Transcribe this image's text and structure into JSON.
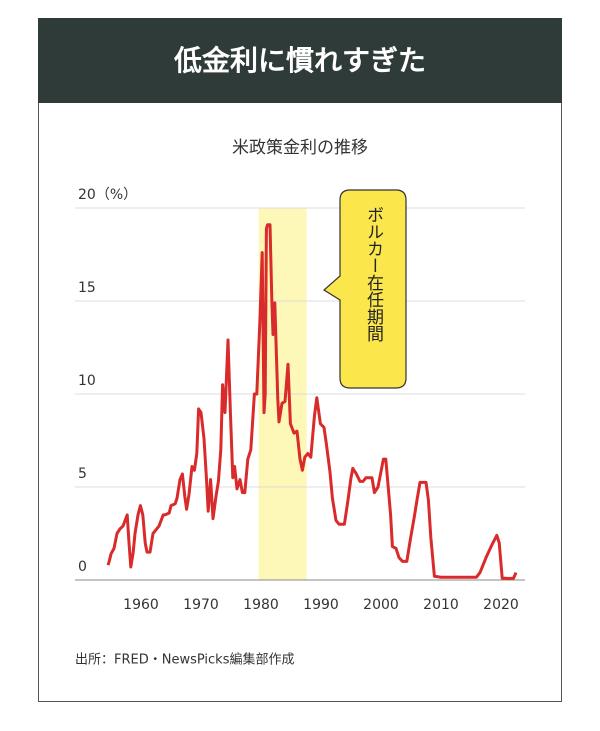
{
  "header": {
    "title": "低金利に慣れすぎた"
  },
  "chart_data": {
    "type": "line",
    "title": "米政策金利の推移",
    "source": "出所：FRED・NewsPicks編集部作成",
    "x": [
      1954.5,
      1954.7,
      1955,
      1955.5,
      1956,
      1956.5,
      1957,
      1957.7,
      1958,
      1958.3,
      1958.7,
      1959,
      1959.5,
      1959.9,
      1960.3,
      1960.7,
      1961,
      1961.5,
      1962,
      1962.5,
      1963,
      1963.7,
      1964,
      1964.7,
      1965,
      1965.7,
      1966,
      1966.5,
      1966.9,
      1967.3,
      1967.6,
      1968,
      1968.5,
      1968.9,
      1969.3,
      1969.6,
      1970,
      1970.5,
      1970.9,
      1971.2,
      1971.6,
      1972,
      1972.5,
      1972.9,
      1973.3,
      1973.6,
      1974,
      1974.5,
      1974.9,
      1975.3,
      1975.6,
      1976,
      1976.5,
      1976.9,
      1977.3,
      1977.8,
      1978.3,
      1978.9,
      1979.3,
      1979.8,
      1980.2,
      1980.5,
      1980.7,
      1980.9,
      1981.1,
      1981.5,
      1981.8,
      1982,
      1982.3,
      1982.8,
      1983,
      1983.5,
      1984,
      1984.5,
      1984.9,
      1985.5,
      1986,
      1986.5,
      1986.9,
      1987.3,
      1987.8,
      1988.3,
      1988.9,
      1989.3,
      1989.9,
      1990.5,
      1990.9,
      1991.5,
      1991.9,
      1992.5,
      1993,
      1993.9,
      1994.5,
      1995,
      1995.3,
      1995.9,
      1996.5,
      1997,
      1997.5,
      1998.5,
      1998.9,
      1999.5,
      2000.4,
      2000.8,
      2001.2,
      2001.6,
      2001.9,
      2002.5,
      2003,
      2003.6,
      2004.3,
      2004.9,
      2005.5,
      2006,
      2006.5,
      2007.5,
      2007.9,
      2008.3,
      2008.9,
      2010,
      2012,
      2015.9,
      2016.5,
      2017.5,
      2018.5,
      2019.3,
      2019.7,
      2020.2,
      2021.5,
      2022.1,
      2022.5
    ],
    "series": [
      {
        "name": "米政策金利",
        "color": "#d92b2b",
        "values": [
          0.8,
          1.0,
          1.4,
          1.7,
          2.5,
          2.75,
          2.9,
          3.5,
          2.0,
          0.7,
          1.5,
          2.5,
          3.5,
          4.0,
          3.5,
          2.0,
          1.5,
          1.5,
          2.5,
          2.7,
          2.9,
          3.5,
          3.5,
          3.6,
          4.0,
          4.1,
          4.4,
          5.4,
          5.7,
          4.5,
          3.8,
          4.6,
          6.1,
          5.9,
          6.8,
          9.2,
          9.0,
          7.6,
          5.5,
          3.7,
          5.4,
          3.3,
          4.5,
          5.3,
          7.0,
          10.5,
          9.0,
          12.9,
          9.0,
          5.5,
          6.1,
          4.9,
          5.4,
          4.7,
          4.7,
          6.5,
          7.0,
          10.0,
          10.0,
          13.8,
          17.6,
          9.0,
          10.0,
          18.9,
          19.1,
          19.1,
          15.1,
          13.2,
          14.9,
          9.7,
          8.5,
          9.5,
          9.6,
          11.6,
          8.4,
          7.9,
          8.0,
          6.5,
          5.9,
          6.6,
          6.8,
          6.6,
          8.8,
          9.8,
          8.4,
          8.2,
          7.3,
          5.8,
          4.4,
          3.2,
          3.0,
          3.0,
          4.3,
          5.5,
          6.0,
          5.7,
          5.3,
          5.3,
          5.5,
          5.5,
          4.7,
          5.0,
          6.5,
          6.5,
          5.0,
          3.5,
          1.8,
          1.7,
          1.2,
          1.0,
          1.0,
          2.2,
          3.3,
          4.3,
          5.25,
          5.25,
          4.3,
          2.3,
          0.2,
          0.15,
          0.15,
          0.15,
          0.4,
          1.2,
          1.9,
          2.4,
          2.0,
          0.1,
          0.08,
          0.1,
          0.4
        ]
      }
    ],
    "xlim": [
      1949,
      2024
    ],
    "xticks": [
      1960,
      1970,
      1980,
      1990,
      2000,
      2010,
      2020
    ],
    "ylim": [
      0,
      20
    ],
    "yticks": [
      0,
      5,
      10,
      15,
      {
        "value": 20,
        "label": "20（%）"
      }
    ],
    "grid": true,
    "highlight": {
      "x": [
        1979.6,
        1987.6
      ],
      "label": "ボルカー在任期間",
      "color": "#fdf7b8"
    }
  }
}
